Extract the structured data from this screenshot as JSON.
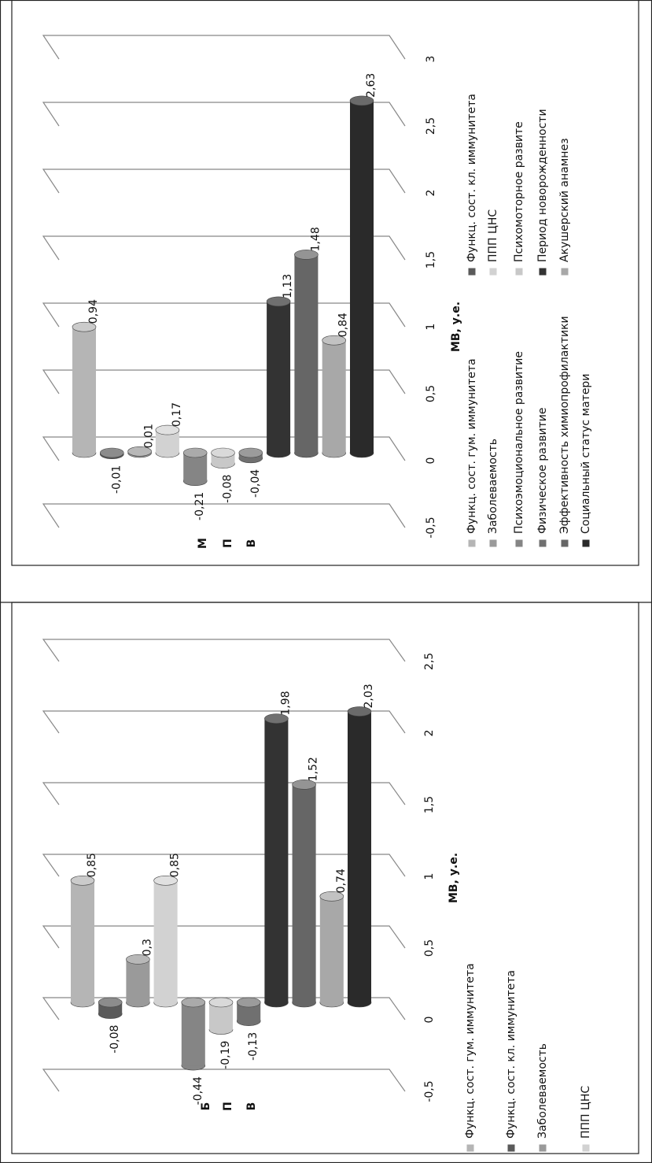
{
  "chart_data": [
    {
      "type": "bar",
      "categories": [
        "М",
        "П",
        "В"
      ],
      "y_axis_label": "МВ, у.е.",
      "ylim": [
        -0.5,
        3
      ],
      "yticks": [
        {
          "value": -0.5,
          "label": "-0,5"
        },
        0,
        {
          "value": 0.5,
          "label": "0,5"
        },
        1,
        {
          "value": 1.5,
          "label": "1,5"
        },
        2,
        {
          "value": 2.5,
          "label": "2,5"
        },
        3
      ],
      "grid": true,
      "series": [
        {
          "name": "Функц. сост. гум. иммунитета",
          "color": "#b5b5b5",
          "values": [
            0.94,
            null,
            null
          ],
          "value_labels": [
            "0,94",
            null,
            null
          ]
        },
        {
          "name": "Функц. сост. кл. иммунитета",
          "color": "#5a5a5a",
          "values": [
            -0.01,
            null,
            null
          ],
          "value_labels": [
            "-0,01",
            null,
            null
          ]
        },
        {
          "name": "Заболеваемость",
          "color": "#9a9a9a",
          "values": [
            0.01,
            null,
            null
          ],
          "value_labels": [
            "0,01",
            null,
            null
          ]
        },
        {
          "name": "ППП ЦНС",
          "color": "#d2d2d2",
          "values": [
            0.17,
            null,
            null
          ],
          "value_labels": [
            "0,17",
            null,
            null
          ]
        },
        {
          "name": "Психоэмоциональное развитие",
          "color": "#858585",
          "values": [
            null,
            -0.21,
            null
          ],
          "value_labels": [
            null,
            "-0,21",
            null
          ]
        },
        {
          "name": "Психомоторное развите",
          "color": "#c8c8c8",
          "values": [
            null,
            -0.08,
            null
          ],
          "value_labels": [
            null,
            "-0,08",
            null
          ]
        },
        {
          "name": "Физическое развитие",
          "color": "#707070",
          "values": [
            null,
            -0.04,
            null
          ],
          "value_labels": [
            null,
            "-0,04",
            null
          ]
        },
        {
          "name": "Период новорожденности",
          "color": "#333333",
          "values": [
            null,
            null,
            1.13
          ],
          "value_labels": [
            null,
            null,
            "1,13"
          ]
        },
        {
          "name": "Эффективность химиопрофилактики",
          "color": "#666666",
          "values": [
            null,
            null,
            1.48
          ],
          "value_labels": [
            null,
            null,
            "1,48"
          ]
        },
        {
          "name": "Акушерский анамнез",
          "color": "#a8a8a8",
          "values": [
            null,
            null,
            0.84
          ],
          "value_labels": [
            null,
            null,
            "0,84"
          ]
        },
        {
          "name": "Социальный статус матери",
          "color": "#2a2a2a",
          "values": [
            null,
            null,
            2.63
          ],
          "value_labels": [
            null,
            null,
            "2,63"
          ]
        }
      ]
    },
    {
      "type": "bar",
      "categories": [
        "Б",
        "П",
        "В"
      ],
      "y_axis_label": "МВ, у.е.",
      "ylim": [
        -0.5,
        2.5
      ],
      "yticks": [
        {
          "value": -0.5,
          "label": "-0,5"
        },
        0,
        {
          "value": 0.5,
          "label": "0,5"
        },
        1,
        {
          "value": 1.5,
          "label": "1,5"
        },
        2,
        {
          "value": 2.5,
          "label": "2,5"
        }
      ],
      "grid": true,
      "series": [
        {
          "name": "Функц. сост. гум. иммунитета",
          "color": "#b5b5b5",
          "values": [
            0.85,
            null,
            null
          ],
          "value_labels": [
            "0,85",
            null,
            null
          ]
        },
        {
          "name": "Функц. сост. кл. иммунитета",
          "color": "#5a5a5a",
          "values": [
            -0.08,
            null,
            null
          ],
          "value_labels": [
            "-0,08",
            null,
            null
          ]
        },
        {
          "name": "Заболеваемость",
          "color": "#9a9a9a",
          "values": [
            0.3,
            null,
            null
          ],
          "value_labels": [
            "0,3",
            null,
            null
          ]
        },
        {
          "name": "ППП ЦНС",
          "color": "#d2d2d2",
          "values": [
            0.85,
            null,
            null
          ],
          "value_labels": [
            "0,85",
            null,
            null
          ]
        },
        {
          "color": "#858585",
          "values": [
            null,
            -0.44,
            null
          ],
          "value_labels": [
            null,
            "-0,44",
            null
          ]
        },
        {
          "color": "#c8c8c8",
          "values": [
            null,
            -0.19,
            null
          ],
          "value_labels": [
            null,
            "-0,19",
            null
          ]
        },
        {
          "color": "#707070",
          "values": [
            null,
            -0.13,
            null
          ],
          "value_labels": [
            null,
            "-0,13",
            null
          ]
        },
        {
          "color": "#333333",
          "values": [
            null,
            null,
            1.98
          ],
          "value_labels": [
            null,
            null,
            "1,98"
          ]
        },
        {
          "color": "#666666",
          "values": [
            null,
            null,
            1.52
          ],
          "value_labels": [
            null,
            null,
            "1,52"
          ]
        },
        {
          "color": "#a8a8a8",
          "values": [
            null,
            null,
            0.74
          ],
          "value_labels": [
            null,
            null,
            "0,74"
          ]
        },
        {
          "color": "#2a2a2a",
          "values": [
            null,
            null,
            2.03
          ],
          "value_labels": [
            null,
            null,
            "2,03"
          ]
        }
      ]
    }
  ]
}
